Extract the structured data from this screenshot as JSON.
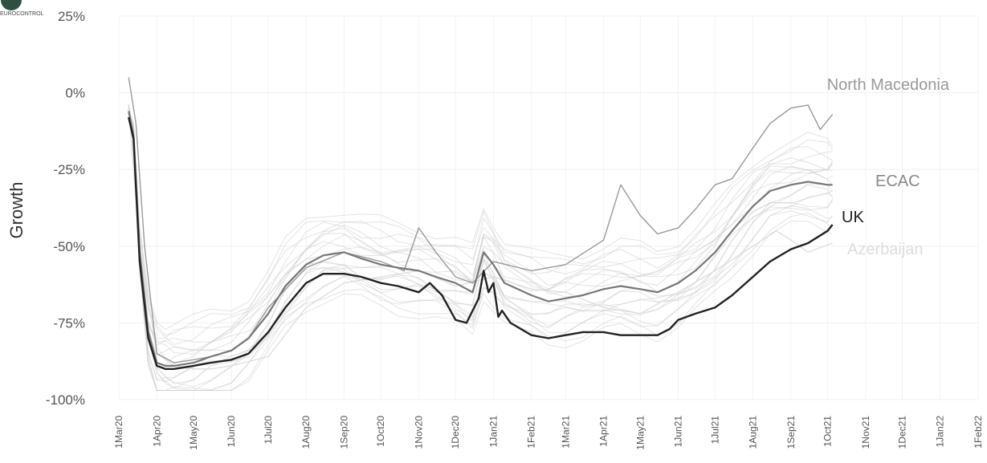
{
  "logo": {
    "name": "eurocontrol-logo",
    "text": "EUROCONTROL"
  },
  "chart_data": {
    "type": "line",
    "title": "",
    "xlabel": "",
    "ylabel": "Growth",
    "ylim": [
      -100,
      25
    ],
    "yticks": [
      {
        "value": 25,
        "label": "25%"
      },
      {
        "value": 0,
        "label": "0%"
      },
      {
        "value": -25,
        "label": "-25%"
      },
      {
        "value": -50,
        "label": "-50%"
      },
      {
        "value": -75,
        "label": "-75%"
      },
      {
        "value": -100,
        "label": "-100%"
      }
    ],
    "xticks": [
      "1Mar20",
      "1Apr20",
      "1May20",
      "1Jun20",
      "1Jul20",
      "1Aug20",
      "1Sep20",
      "1Oct20",
      "1Nov20",
      "1Dec20",
      "1Jan21",
      "1Feb21",
      "1Mar21",
      "1Apr21",
      "1May21",
      "1Jun21",
      "1Jul21",
      "1Aug21",
      "1Sep21",
      "1Oct21",
      "1Nov21",
      "1Dec21",
      "1Jan22",
      "1Feb22"
    ],
    "grid": true,
    "legend": "direct labels at line ends (right)",
    "colors": {
      "uk": "#222222",
      "ecac": "#777777",
      "north_macedonia": "#999999",
      "azerbaijan": "#dddddd",
      "others": "#cccccc"
    },
    "series": [
      {
        "name": "UK",
        "label_key": "uk",
        "x": [
          "2020-03-09",
          "2020-03-13",
          "2020-03-18",
          "2020-03-25",
          "2020-04-01",
          "2020-04-08",
          "2020-04-15",
          "2020-05-01",
          "2020-05-15",
          "2020-06-01",
          "2020-06-15",
          "2020-07-01",
          "2020-07-15",
          "2020-08-01",
          "2020-08-15",
          "2020-09-01",
          "2020-09-15",
          "2020-10-01",
          "2020-10-15",
          "2020-11-01",
          "2020-11-10",
          "2020-11-20",
          "2020-12-01",
          "2020-12-10",
          "2020-12-20",
          "2020-12-24",
          "2020-12-28",
          "2021-01-01",
          "2021-01-05",
          "2021-01-08",
          "2021-01-15",
          "2021-02-01",
          "2021-02-15",
          "2021-03-01",
          "2021-03-15",
          "2021-04-01",
          "2021-04-15",
          "2021-05-01",
          "2021-05-15",
          "2021-05-25",
          "2021-06-01",
          "2021-06-15",
          "2021-07-01",
          "2021-07-15",
          "2021-08-01",
          "2021-08-15",
          "2021-09-01",
          "2021-09-15",
          "2021-10-01",
          "2021-10-05"
        ],
        "values": [
          -8,
          -15,
          -55,
          -80,
          -89,
          -90,
          -90,
          -89,
          -88,
          -87,
          -85,
          -78,
          -70,
          -62,
          -59,
          -59,
          -60,
          -62,
          -63,
          -65,
          -62,
          -66,
          -74,
          -75,
          -67,
          -58,
          -65,
          -62,
          -73,
          -71,
          -75,
          -79,
          -80,
          -79,
          -78,
          -78,
          -79,
          -79,
          -79,
          -77,
          -74,
          -72,
          -70,
          -66,
          -60,
          -55,
          -51,
          -49,
          -45,
          -43
        ]
      },
      {
        "name": "ECAC",
        "label_key": "ecac",
        "x": [
          "2020-03-09",
          "2020-03-13",
          "2020-03-18",
          "2020-03-25",
          "2020-04-01",
          "2020-04-08",
          "2020-04-15",
          "2020-05-01",
          "2020-05-15",
          "2020-06-01",
          "2020-06-15",
          "2020-07-01",
          "2020-07-15",
          "2020-08-01",
          "2020-08-15",
          "2020-09-01",
          "2020-09-15",
          "2020-10-01",
          "2020-10-15",
          "2020-11-01",
          "2020-11-15",
          "2020-12-01",
          "2020-12-15",
          "2020-12-24",
          "2021-01-01",
          "2021-01-10",
          "2021-02-01",
          "2021-02-15",
          "2021-03-01",
          "2021-03-15",
          "2021-04-01",
          "2021-04-15",
          "2021-05-01",
          "2021-05-15",
          "2021-06-01",
          "2021-06-15",
          "2021-07-01",
          "2021-07-15",
          "2021-08-01",
          "2021-08-15",
          "2021-09-01",
          "2021-09-15",
          "2021-10-01",
          "2021-10-05"
        ],
        "values": [
          -6,
          -14,
          -52,
          -78,
          -88,
          -89,
          -89,
          -88,
          -86,
          -84,
          -80,
          -72,
          -63,
          -56,
          -53,
          -52,
          -54,
          -56,
          -57,
          -58,
          -60,
          -62,
          -65,
          -52,
          -56,
          -62,
          -66,
          -68,
          -67,
          -66,
          -64,
          -63,
          -64,
          -65,
          -62,
          -58,
          -52,
          -45,
          -37,
          -32,
          -30,
          -29,
          -30,
          -30
        ]
      },
      {
        "name": "North Macedonia",
        "label_key": "north_macedonia",
        "x": [
          "2020-03-09",
          "2020-03-15",
          "2020-03-22",
          "2020-04-01",
          "2020-04-15",
          "2020-05-01",
          "2020-05-15",
          "2020-06-01",
          "2020-06-15",
          "2020-07-01",
          "2020-08-01",
          "2020-09-01",
          "2020-10-01",
          "2020-10-20",
          "2020-11-01",
          "2020-11-15",
          "2020-12-01",
          "2020-12-15",
          "2021-01-01",
          "2021-02-01",
          "2021-03-01",
          "2021-04-01",
          "2021-04-15",
          "2021-05-01",
          "2021-05-15",
          "2021-06-01",
          "2021-06-15",
          "2021-07-01",
          "2021-07-15",
          "2021-08-01",
          "2021-08-15",
          "2021-09-01",
          "2021-09-15",
          "2021-09-25",
          "2021-10-05"
        ],
        "values": [
          5,
          -10,
          -50,
          -85,
          -88,
          -87,
          -86,
          -84,
          -80,
          -70,
          -57,
          -52,
          -55,
          -58,
          -44,
          -52,
          -60,
          -62,
          -55,
          -58,
          -56,
          -48,
          -30,
          -40,
          -46,
          -44,
          -38,
          -30,
          -28,
          -18,
          -10,
          -5,
          -4,
          -12,
          -7
        ]
      },
      {
        "name": "Azerbaijan",
        "label_key": "azerbaijan",
        "x": [
          "2020-03-09",
          "2020-03-18",
          "2020-04-01",
          "2020-04-15",
          "2020-05-01",
          "2020-05-15",
          "2020-06-01",
          "2020-07-01",
          "2020-08-01",
          "2020-09-01",
          "2020-10-01",
          "2020-11-01",
          "2020-12-01",
          "2021-01-01",
          "2021-02-01",
          "2021-03-01",
          "2021-04-01",
          "2021-05-01",
          "2021-06-01",
          "2021-07-01",
          "2021-08-01",
          "2021-08-20",
          "2021-09-01",
          "2021-09-15",
          "2021-10-05"
        ],
        "values": [
          -5,
          -50,
          -85,
          -89,
          -90,
          -90,
          -89,
          -86,
          -70,
          -62,
          -60,
          -58,
          -63,
          -60,
          -64,
          -65,
          -70,
          -72,
          -65,
          -58,
          -50,
          -45,
          -48,
          -52,
          -49
        ]
      }
    ],
    "background_series_note": "many unlabeled country lines in light grey"
  },
  "labels": {
    "north_macedonia": "North Macedonia",
    "ecac": "ECAC",
    "uk": "UK",
    "azerbaijan": "Azerbaijan"
  }
}
